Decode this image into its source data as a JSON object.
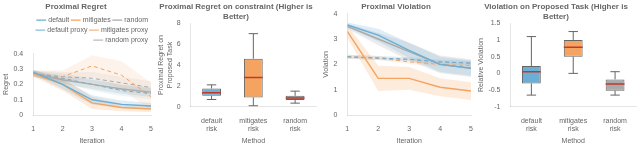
{
  "chart_data": [
    {
      "type": "line",
      "title": "Proximal Regret",
      "xlabel": "Iteration",
      "ylabel": "Regret",
      "x": [
        1,
        2,
        3,
        4,
        5
      ],
      "xlim": [
        1,
        5
      ],
      "xticks": [
        1,
        2,
        3,
        4,
        5
      ],
      "ylim": [
        0,
        0.4
      ],
      "yticks": [
        0,
        0.1,
        0.2,
        0.3,
        0.4
      ],
      "grid": false,
      "legend": "upper right",
      "series": [
        {
          "name": "default",
          "color": "#6baed6",
          "line_style": "solid",
          "values": [
            0.28,
            0.2,
            0.1,
            0.07,
            0.06
          ],
          "std": [
            0.015,
            0.03,
            0.03,
            0.025,
            0.02
          ]
        },
        {
          "name": "mitigates",
          "color": "#f4a460",
          "line_style": "solid",
          "values": [
            0.27,
            0.2,
            0.08,
            0.05,
            0.04
          ],
          "std": [
            0.02,
            0.04,
            0.04,
            0.025,
            0.02
          ]
        },
        {
          "name": "random",
          "color": "#aaaaaa",
          "line_style": "solid",
          "values": [
            0.27,
            0.23,
            0.2,
            0.17,
            0.15
          ],
          "std": [
            0.02,
            0.025,
            0.03,
            0.03,
            0.03
          ]
        },
        {
          "name": "default proxy",
          "color": "#6baed6",
          "line_style": "dashed",
          "values": [
            0.27,
            0.24,
            0.2,
            0.16,
            0.14
          ],
          "std": [
            0.02,
            0.03,
            0.04,
            0.035,
            0.035
          ]
        },
        {
          "name": "mitigates proxy",
          "color": "#f4a460",
          "line_style": "dashed",
          "values": [
            0.27,
            0.25,
            0.32,
            0.26,
            0.12
          ],
          "std": [
            0.02,
            0.04,
            0.07,
            0.09,
            0.09
          ]
        },
        {
          "name": "random proxy",
          "color": "#aaaaaa",
          "line_style": "dashed",
          "values": [
            0.27,
            0.25,
            0.24,
            0.21,
            0.18
          ],
          "std": [
            0.02,
            0.03,
            0.04,
            0.04,
            0.04
          ]
        }
      ]
    },
    {
      "type": "box",
      "title": "Proximal Regret on constraint (Higher is Better)",
      "xlabel": "Method",
      "ylabel": "Proximal Regret on Proposed Task",
      "categories": [
        "default\nrisk",
        "mitigates\nrisk",
        "random\nrisk"
      ],
      "colors": [
        "#6baed6",
        "#f4a460",
        "#aaaaaa"
      ],
      "median": [
        1.35,
        2.8,
        0.85
      ],
      "q1": [
        1.05,
        0.9,
        0.65
      ],
      "q3": [
        1.75,
        4.6,
        1.05
      ],
      "whislo": [
        0.7,
        0.1,
        0.35
      ],
      "whishi": [
        2.1,
        7.0,
        1.5
      ],
      "ylim": [
        0,
        8
      ],
      "yticks": [
        0,
        2,
        4,
        6,
        8
      ],
      "grid": false
    },
    {
      "type": "line",
      "title": "Proximal Violation",
      "xlabel": "Iteration",
      "ylabel": "Violation",
      "x": [
        1,
        2,
        3,
        4,
        5
      ],
      "xlim": [
        1,
        5
      ],
      "xticks": [
        1,
        2,
        3,
        4,
        5
      ],
      "ylim": [
        0,
        4
      ],
      "yticks": [
        0,
        1,
        2,
        3,
        4
      ],
      "grid": false,
      "series": [
        {
          "name": "default",
          "color": "#6baed6",
          "line_style": "solid",
          "values": [
            3.55,
            3.15,
            2.55,
            2.0,
            1.85
          ],
          "std": [
            0.1,
            0.25,
            0.3,
            0.3,
            0.3
          ]
        },
        {
          "name": "mitigates",
          "color": "#f4a460",
          "line_style": "solid",
          "values": [
            3.3,
            1.45,
            1.45,
            1.1,
            0.95
          ],
          "std": [
            0.25,
            0.5,
            0.45,
            0.35,
            0.35
          ]
        },
        {
          "name": "random",
          "color": "#aaaaaa",
          "line_style": "solid",
          "values": [
            3.5,
            3.0,
            2.5,
            2.0,
            1.85
          ],
          "std": [
            0.1,
            0.25,
            0.35,
            0.35,
            0.35
          ]
        },
        {
          "name": "default proxy",
          "color": "#6baed6",
          "line_style": "dashed",
          "values": [
            2.3,
            2.25,
            2.2,
            2.1,
            2.05
          ],
          "std": [
            0.08,
            0.08,
            0.08,
            0.08,
            0.08
          ]
        },
        {
          "name": "mitigates proxy",
          "color": "#f4a460",
          "line_style": "dashed",
          "values": [
            2.3,
            2.25,
            2.1,
            2.0,
            1.95
          ],
          "std": [
            0.08,
            0.08,
            0.08,
            0.08,
            0.08
          ]
        },
        {
          "name": "random proxy",
          "color": "#aaaaaa",
          "line_style": "dashed",
          "values": [
            2.3,
            2.25,
            2.2,
            2.1,
            2.05
          ],
          "std": [
            0.08,
            0.08,
            0.08,
            0.08,
            0.08
          ]
        }
      ]
    },
    {
      "type": "box",
      "title": "Violation on Proposed Task (Higher is Better)",
      "xlabel": "Method",
      "ylabel": "Relative Violation",
      "categories": [
        "default\nrisk",
        "mitigates\nrisk",
        "random\nrisk"
      ],
      "colors": [
        "#6baed6",
        "#f4a460",
        "#aaaaaa"
      ],
      "median": [
        0.05,
        0.78,
        -0.32
      ],
      "q1": [
        -0.3,
        0.5,
        -0.52
      ],
      "q3": [
        0.22,
        1.0,
        -0.18
      ],
      "whislo": [
        -0.65,
        0.0,
        -0.65
      ],
      "whishi": [
        1.1,
        1.25,
        0.05
      ],
      "ylim": [
        -1,
        1.5
      ],
      "yticks": [
        -1,
        -0.5,
        0,
        0.5,
        1,
        1.5
      ],
      "grid": false
    }
  ]
}
